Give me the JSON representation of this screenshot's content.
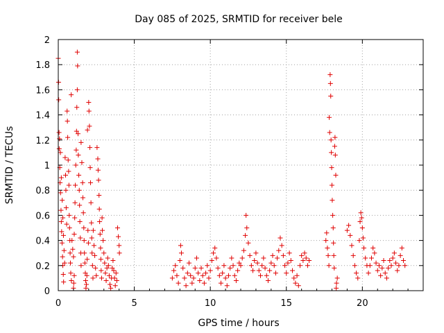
{
  "chart_data": {
    "type": "scatter",
    "title": "Day 085 of 2025, SRMTID for receiver bele",
    "xlabel": "GPS time / hours",
    "ylabel": "SRMTID / TECUs",
    "xlim": [
      0,
      24
    ],
    "ylim": [
      0,
      2
    ],
    "xticks": [
      0,
      5,
      10,
      15,
      20
    ],
    "xtick_labels": [
      "0",
      "5",
      "10",
      "15",
      "20"
    ],
    "yticks": [
      0,
      0.2,
      0.4,
      0.6,
      0.8,
      1,
      1.2,
      1.4,
      1.6,
      1.8,
      2
    ],
    "ytick_labels": [
      "0",
      "0.2",
      "0.4",
      "0.6",
      "0.8",
      "1",
      "1.2",
      "1.4",
      "1.6",
      "1.8",
      "2"
    ],
    "grid": true,
    "marker": "+",
    "color": "#e00000",
    "series": [
      {
        "name": "SRMTID",
        "points": [
          [
            0.0,
            1.85
          ],
          [
            0.02,
            1.66
          ],
          [
            0.03,
            1.52
          ],
          [
            0.05,
            1.26
          ],
          [
            0.06,
            1.13
          ],
          [
            0.1,
            0.98
          ],
          [
            0.12,
            0.86
          ],
          [
            0.15,
            0.78
          ],
          [
            0.18,
            0.64
          ],
          [
            0.2,
            0.55
          ],
          [
            0.22,
            0.47
          ],
          [
            0.25,
            0.38
          ],
          [
            0.28,
            0.27
          ],
          [
            0.3,
            0.2
          ],
          [
            0.33,
            0.13
          ],
          [
            0.35,
            0.07
          ],
          [
            0.08,
            1.21
          ],
          [
            0.14,
            1.1
          ],
          [
            0.2,
            0.9
          ],
          [
            0.26,
            0.72
          ],
          [
            0.3,
            0.58
          ],
          [
            0.34,
            0.44
          ],
          [
            0.38,
            0.32
          ],
          [
            0.42,
            0.22
          ],
          [
            0.45,
            1.06
          ],
          [
            0.48,
            0.92
          ],
          [
            0.5,
            0.8
          ],
          [
            0.52,
            0.66
          ],
          [
            0.55,
            0.53
          ],
          [
            0.58,
            1.43
          ],
          [
            0.6,
            1.35
          ],
          [
            0.62,
            1.22
          ],
          [
            0.65,
            1.04
          ],
          [
            0.68,
            0.95
          ],
          [
            0.7,
            0.84
          ],
          [
            0.72,
            0.6
          ],
          [
            0.74,
            0.5
          ],
          [
            0.76,
            0.4
          ],
          [
            0.78,
            0.3
          ],
          [
            0.8,
            0.22
          ],
          [
            0.82,
            0.14
          ],
          [
            0.85,
            1.56
          ],
          [
            0.86,
            0.08
          ],
          [
            0.9,
            0.4
          ],
          [
            0.95,
            0.33
          ],
          [
            1.0,
            0.27
          ],
          [
            1.0,
            0.02
          ],
          [
            1.02,
            0.06
          ],
          [
            1.05,
            0.12
          ],
          [
            1.05,
            0.45
          ],
          [
            1.08,
            0.58
          ],
          [
            1.1,
            0.7
          ],
          [
            1.12,
            0.84
          ],
          [
            1.15,
            1.0
          ],
          [
            1.18,
            1.12
          ],
          [
            1.2,
            1.27
          ],
          [
            1.22,
            1.46
          ],
          [
            1.25,
            1.6
          ],
          [
            1.25,
            1.9
          ],
          [
            1.27,
            1.79
          ],
          [
            1.3,
            1.25
          ],
          [
            1.32,
            1.08
          ],
          [
            1.35,
            0.92
          ],
          [
            1.38,
            0.8
          ],
          [
            1.4,
            0.68
          ],
          [
            1.42,
            0.55
          ],
          [
            1.45,
            0.42
          ],
          [
            1.48,
            0.3
          ],
          [
            1.5,
            0.2
          ],
          [
            1.5,
            1.18
          ],
          [
            1.55,
            1.02
          ],
          [
            1.6,
            0.86
          ],
          [
            1.62,
            0.74
          ],
          [
            1.65,
            0.62
          ],
          [
            1.68,
            0.5
          ],
          [
            1.7,
            0.4
          ],
          [
            1.72,
            0.3
          ],
          [
            1.75,
            0.22
          ],
          [
            1.78,
            0.14
          ],
          [
            1.8,
            0.08
          ],
          [
            1.82,
            0.02
          ],
          [
            1.85,
            0.05
          ],
          [
            1.88,
            0.12
          ],
          [
            1.9,
            0.25
          ],
          [
            1.92,
            1.28
          ],
          [
            1.95,
            0.48
          ],
          [
            1.98,
            0.38
          ],
          [
            2.0,
            1.5
          ],
          [
            2.02,
            1.43
          ],
          [
            2.05,
            1.31
          ],
          [
            2.08,
            1.14
          ],
          [
            2.1,
            0.98
          ],
          [
            2.12,
            0.86
          ],
          [
            2.15,
            0.7
          ],
          [
            2.18,
            0.54
          ],
          [
            2.2,
            0.42
          ],
          [
            2.22,
            0.3
          ],
          [
            2.25,
            0.2
          ],
          [
            2.28,
            0.1
          ],
          [
            2.3,
            0.48
          ],
          [
            2.35,
            0.36
          ],
          [
            2.4,
            0.28
          ],
          [
            2.45,
            0.18
          ],
          [
            2.5,
            0.12
          ],
          [
            2.55,
            1.14
          ],
          [
            2.6,
            1.05
          ],
          [
            2.62,
            0.96
          ],
          [
            2.65,
            0.88
          ],
          [
            2.68,
            0.76
          ],
          [
            2.7,
            0.65
          ],
          [
            2.72,
            0.55
          ],
          [
            2.75,
            0.45
          ],
          [
            2.78,
            0.34
          ],
          [
            2.8,
            0.25
          ],
          [
            2.82,
            0.16
          ],
          [
            2.85,
            0.1
          ],
          [
            2.88,
            0.58
          ],
          [
            2.9,
            0.48
          ],
          [
            2.95,
            0.4
          ],
          [
            3.0,
            0.3
          ],
          [
            3.05,
            0.22
          ],
          [
            3.1,
            0.14
          ],
          [
            3.15,
            0.08
          ],
          [
            3.2,
            0.18
          ],
          [
            3.25,
            0.26
          ],
          [
            3.3,
            0.2
          ],
          [
            3.35,
            0.12
          ],
          [
            3.4,
            0.05
          ],
          [
            3.45,
            0.02
          ],
          [
            3.5,
            0.1
          ],
          [
            3.55,
            0.18
          ],
          [
            3.6,
            0.24
          ],
          [
            3.65,
            0.16
          ],
          [
            3.7,
            0.1
          ],
          [
            3.75,
            0.04
          ],
          [
            3.8,
            0.14
          ],
          [
            3.85,
            0.08
          ],
          [
            3.9,
            0.5
          ],
          [
            3.95,
            0.43
          ],
          [
            4.0,
            0.36
          ],
          [
            4.02,
            0.3
          ],
          [
            7.5,
            0.1
          ],
          [
            7.6,
            0.16
          ],
          [
            7.7,
            0.2
          ],
          [
            7.8,
            0.12
          ],
          [
            7.9,
            0.06
          ],
          [
            8.0,
            0.24
          ],
          [
            8.05,
            0.36
          ],
          [
            8.1,
            0.3
          ],
          [
            8.2,
            0.18
          ],
          [
            8.3,
            0.1
          ],
          [
            8.4,
            0.04
          ],
          [
            8.5,
            0.14
          ],
          [
            8.6,
            0.22
          ],
          [
            8.7,
            0.12
          ],
          [
            8.8,
            0.06
          ],
          [
            8.9,
            0.1
          ],
          [
            9.0,
            0.18
          ],
          [
            9.1,
            0.26
          ],
          [
            9.2,
            0.14
          ],
          [
            9.3,
            0.08
          ],
          [
            9.4,
            0.18
          ],
          [
            9.5,
            0.12
          ],
          [
            9.6,
            0.06
          ],
          [
            9.7,
            0.14
          ],
          [
            9.8,
            0.2
          ],
          [
            9.9,
            0.1
          ],
          [
            10.0,
            0.16
          ],
          [
            10.1,
            0.24
          ],
          [
            10.2,
            0.3
          ],
          [
            10.3,
            0.34
          ],
          [
            10.4,
            0.26
          ],
          [
            10.5,
            0.18
          ],
          [
            10.6,
            0.12
          ],
          [
            10.7,
            0.06
          ],
          [
            10.8,
            0.14
          ],
          [
            10.9,
            0.2
          ],
          [
            11.0,
            0.1
          ],
          [
            11.1,
            0.04
          ],
          [
            11.2,
            0.12
          ],
          [
            11.3,
            0.18
          ],
          [
            11.4,
            0.26
          ],
          [
            11.5,
            0.2
          ],
          [
            11.6,
            0.12
          ],
          [
            11.7,
            0.08
          ],
          [
            11.8,
            0.16
          ],
          [
            11.9,
            0.22
          ],
          [
            12.0,
            0.2
          ],
          [
            12.1,
            0.26
          ],
          [
            12.2,
            0.32
          ],
          [
            12.3,
            0.44
          ],
          [
            12.35,
            0.6
          ],
          [
            12.4,
            0.5
          ],
          [
            12.5,
            0.38
          ],
          [
            12.6,
            0.28
          ],
          [
            12.7,
            0.2
          ],
          [
            12.8,
            0.16
          ],
          [
            12.9,
            0.24
          ],
          [
            13.0,
            0.3
          ],
          [
            13.1,
            0.22
          ],
          [
            13.2,
            0.16
          ],
          [
            13.3,
            0.12
          ],
          [
            13.4,
            0.2
          ],
          [
            13.5,
            0.26
          ],
          [
            13.6,
            0.18
          ],
          [
            13.7,
            0.12
          ],
          [
            13.8,
            0.08
          ],
          [
            13.9,
            0.16
          ],
          [
            14.0,
            0.22
          ],
          [
            14.1,
            0.28
          ],
          [
            14.2,
            0.2
          ],
          [
            14.3,
            0.14
          ],
          [
            14.4,
            0.26
          ],
          [
            14.5,
            0.32
          ],
          [
            14.6,
            0.42
          ],
          [
            14.7,
            0.36
          ],
          [
            14.8,
            0.28
          ],
          [
            14.9,
            0.2
          ],
          [
            15.0,
            0.14
          ],
          [
            15.1,
            0.22
          ],
          [
            15.2,
            0.3
          ],
          [
            15.3,
            0.24
          ],
          [
            15.4,
            0.16
          ],
          [
            15.5,
            0.1
          ],
          [
            15.6,
            0.06
          ],
          [
            15.7,
            0.12
          ],
          [
            15.8,
            0.04
          ],
          [
            15.9,
            0.2
          ],
          [
            16.0,
            0.28
          ],
          [
            16.1,
            0.24
          ],
          [
            16.2,
            0.3
          ],
          [
            16.3,
            0.26
          ],
          [
            16.4,
            0.2
          ],
          [
            16.5,
            0.24
          ],
          [
            17.6,
            0.4
          ],
          [
            17.65,
            0.46
          ],
          [
            17.7,
            0.34
          ],
          [
            17.75,
            0.28
          ],
          [
            17.8,
            0.2
          ],
          [
            17.82,
            1.38
          ],
          [
            17.85,
            1.26
          ],
          [
            17.88,
            1.72
          ],
          [
            17.9,
            1.65
          ],
          [
            17.92,
            1.55
          ],
          [
            17.94,
            1.2
          ],
          [
            17.96,
            1.1
          ],
          [
            17.98,
            0.98
          ],
          [
            18.0,
            0.84
          ],
          [
            18.02,
            0.72
          ],
          [
            18.05,
            0.6
          ],
          [
            18.08,
            0.5
          ],
          [
            18.1,
            0.38
          ],
          [
            18.12,
            0.28
          ],
          [
            18.15,
            0.18
          ],
          [
            18.18,
            1.15
          ],
          [
            18.2,
            1.22
          ],
          [
            18.22,
            1.08
          ],
          [
            18.25,
            0.92
          ],
          [
            18.28,
            0.02
          ],
          [
            18.3,
            0.06
          ],
          [
            18.35,
            0.1
          ],
          [
            19.0,
            0.48
          ],
          [
            19.1,
            0.52
          ],
          [
            19.2,
            0.44
          ],
          [
            19.3,
            0.36
          ],
          [
            19.4,
            0.28
          ],
          [
            19.5,
            0.2
          ],
          [
            19.6,
            0.14
          ],
          [
            19.7,
            0.1
          ],
          [
            19.8,
            0.4
          ],
          [
            19.85,
            0.55
          ],
          [
            19.9,
            0.62
          ],
          [
            19.95,
            0.58
          ],
          [
            20.0,
            0.5
          ],
          [
            20.05,
            0.42
          ],
          [
            20.1,
            0.34
          ],
          [
            20.2,
            0.26
          ],
          [
            20.3,
            0.2
          ],
          [
            20.4,
            0.14
          ],
          [
            20.5,
            0.2
          ],
          [
            20.6,
            0.26
          ],
          [
            20.7,
            0.34
          ],
          [
            20.8,
            0.3
          ],
          [
            20.9,
            0.22
          ],
          [
            21.0,
            0.16
          ],
          [
            21.1,
            0.2
          ],
          [
            21.2,
            0.12
          ],
          [
            21.3,
            0.18
          ],
          [
            21.4,
            0.24
          ],
          [
            21.5,
            0.14
          ],
          [
            21.6,
            0.1
          ],
          [
            21.7,
            0.18
          ],
          [
            21.8,
            0.24
          ],
          [
            21.9,
            0.2
          ],
          [
            22.0,
            0.26
          ],
          [
            22.1,
            0.3
          ],
          [
            22.2,
            0.22
          ],
          [
            22.3,
            0.16
          ],
          [
            22.4,
            0.2
          ],
          [
            22.5,
            0.28
          ],
          [
            22.6,
            0.34
          ],
          [
            22.7,
            0.24
          ],
          [
            22.8,
            0.2
          ]
        ]
      }
    ]
  }
}
